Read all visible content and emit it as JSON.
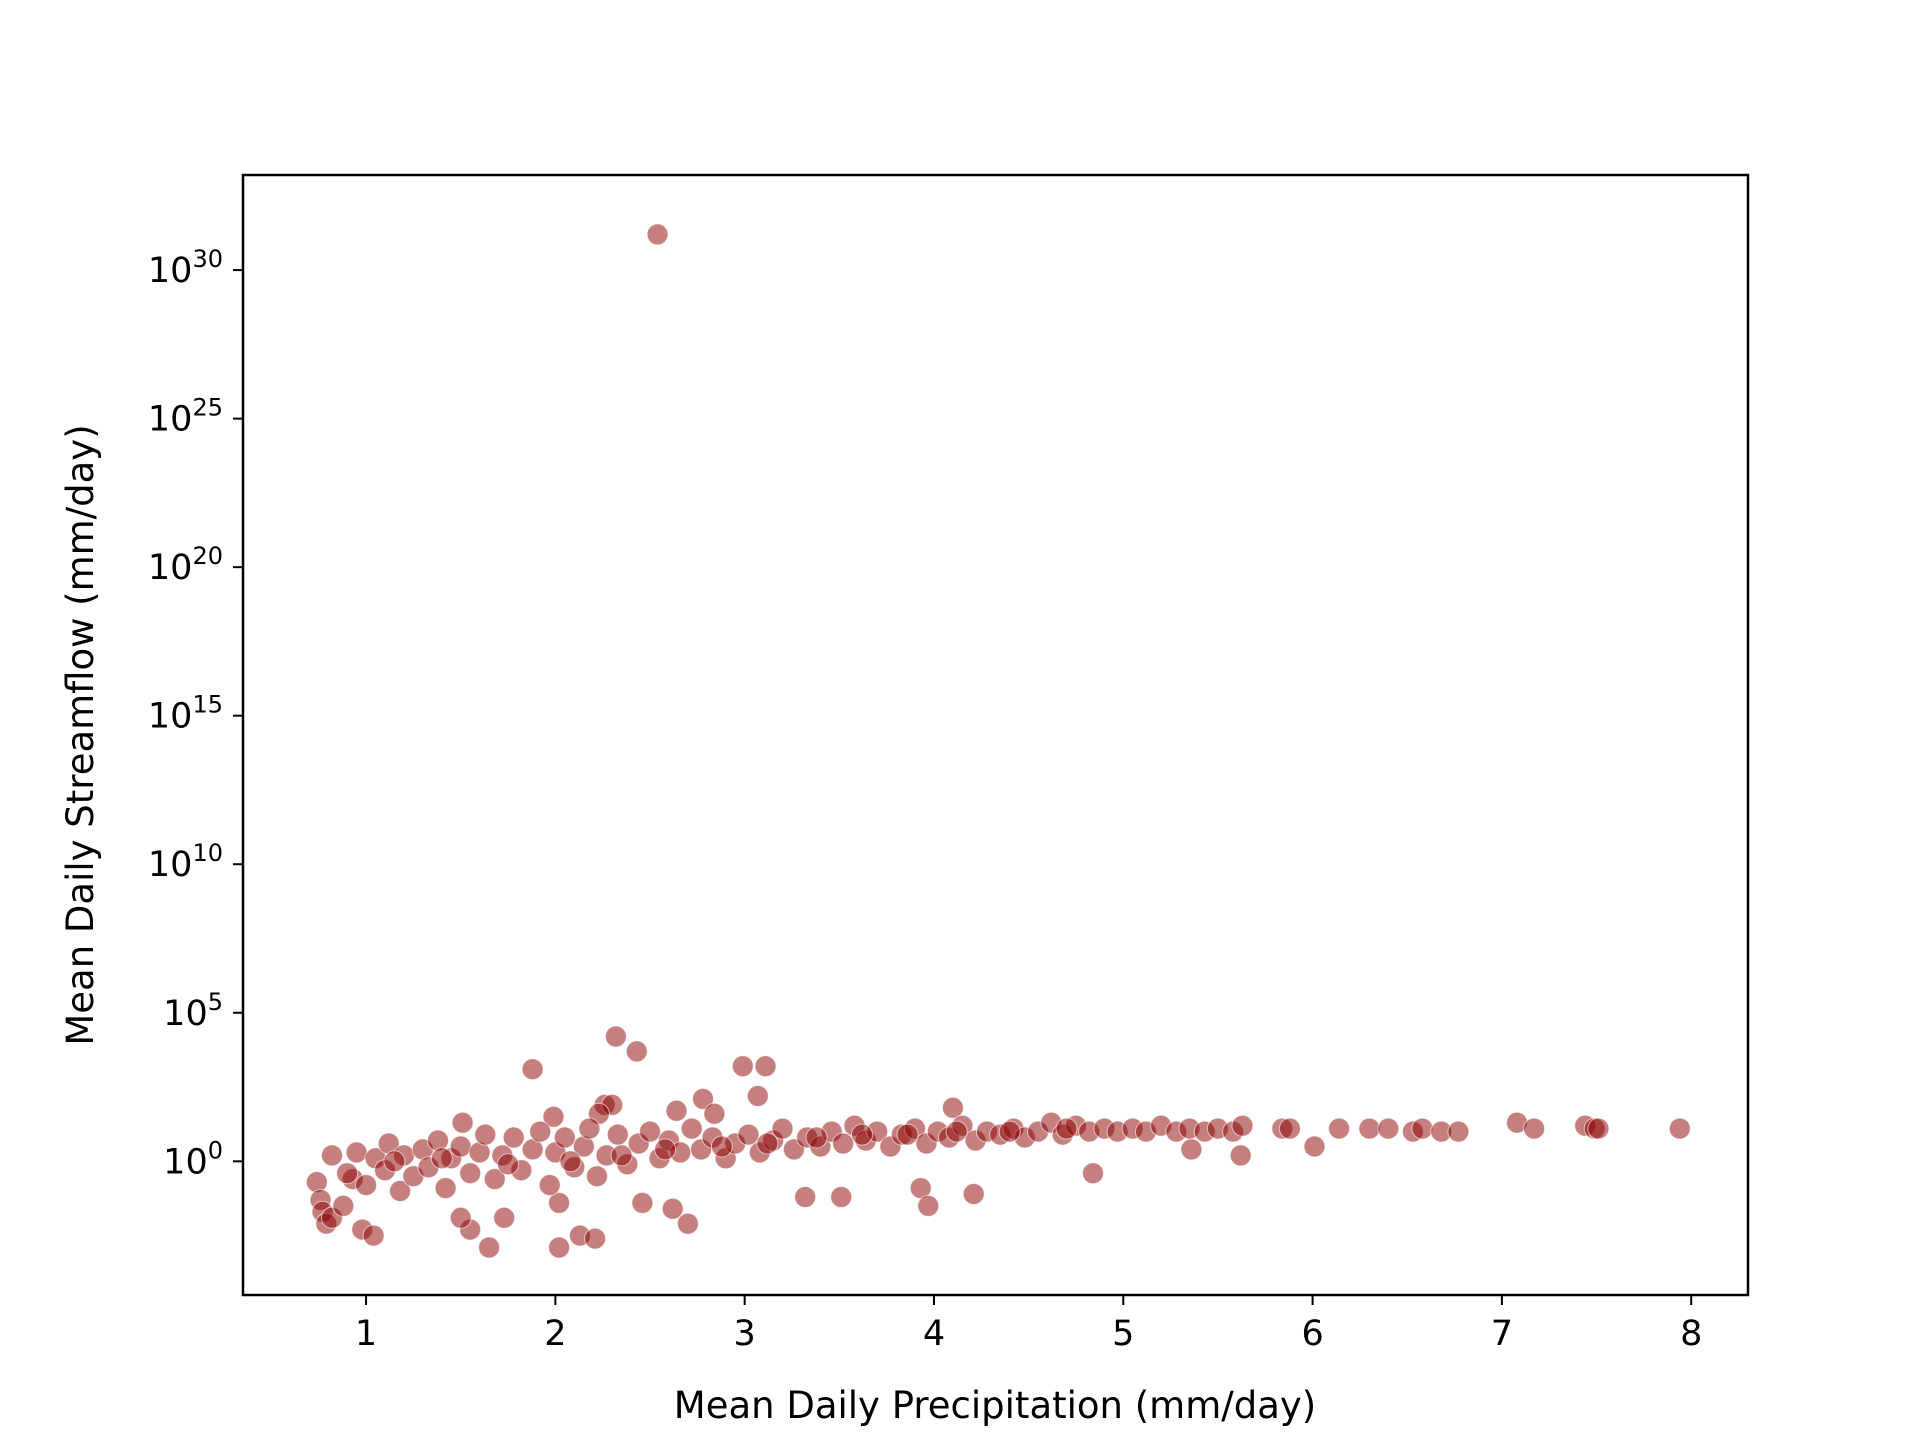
{
  "chart_data": {
    "type": "scatter",
    "title": "",
    "xlabel": "Mean Daily Precipitation (mm/day)",
    "ylabel": "Mean Daily Streamflow (mm/day)",
    "xscale": "linear",
    "yscale": "log",
    "xlim": [
      0.35,
      8.3
    ],
    "ylim_log10": [
      -4.5,
      33.2
    ],
    "xticks": [
      {
        "value": 1,
        "label": "1"
      },
      {
        "value": 2,
        "label": "2"
      },
      {
        "value": 3,
        "label": "3"
      },
      {
        "value": 4,
        "label": "4"
      },
      {
        "value": 5,
        "label": "5"
      },
      {
        "value": 6,
        "label": "6"
      },
      {
        "value": 7,
        "label": "7"
      },
      {
        "value": 8,
        "label": "8"
      }
    ],
    "yticks": [
      {
        "exp": 0,
        "base": "10",
        "power": "0"
      },
      {
        "exp": 5,
        "base": "10",
        "power": "5"
      },
      {
        "exp": 10,
        "base": "10",
        "power": "10"
      },
      {
        "exp": 15,
        "base": "10",
        "power": "15"
      },
      {
        "exp": 20,
        "base": "10",
        "power": "20"
      },
      {
        "exp": 25,
        "base": "10",
        "power": "25"
      },
      {
        "exp": 30,
        "base": "10",
        "power": "30"
      }
    ],
    "grid": false,
    "legend": "none",
    "marker_color": "#8b0000",
    "marker_alpha": 0.5,
    "series": [
      {
        "points_log10": [
          [
            2.54,
            31.2
          ],
          [
            2.32,
            4.2
          ],
          [
            2.43,
            3.7
          ],
          [
            1.88,
            3.1
          ],
          [
            2.99,
            3.2
          ],
          [
            3.11,
            3.2
          ],
          [
            3.07,
            2.2
          ],
          [
            2.26,
            1.9
          ],
          [
            2.3,
            1.9
          ],
          [
            2.64,
            1.7
          ],
          [
            2.78,
            2.1
          ],
          [
            1.99,
            1.5
          ],
          [
            4.1,
            1.8
          ],
          [
            1.51,
            1.3
          ],
          [
            2.23,
            1.6
          ],
          [
            2.84,
            1.6
          ],
          [
            0.74,
            -0.7
          ],
          [
            0.76,
            -1.3
          ],
          [
            0.77,
            -1.7
          ],
          [
            0.79,
            -2.1
          ],
          [
            0.82,
            -1.9
          ],
          [
            0.82,
            0.2
          ],
          [
            0.88,
            -1.5
          ],
          [
            0.93,
            -0.6
          ],
          [
            0.98,
            -2.3
          ],
          [
            1.04,
            -2.5
          ],
          [
            1.55,
            -2.3
          ],
          [
            1.65,
            -2.9
          ],
          [
            2.02,
            -2.9
          ],
          [
            2.13,
            -2.5
          ],
          [
            2.21,
            -2.6
          ],
          [
            1.5,
            -1.9
          ],
          [
            1.73,
            -1.9
          ],
          [
            2.02,
            -1.4
          ],
          [
            2.46,
            -1.4
          ],
          [
            2.62,
            -1.6
          ],
          [
            2.7,
            -2.1
          ],
          [
            3.32,
            -1.2
          ],
          [
            3.51,
            -1.2
          ],
          [
            3.93,
            -0.9
          ],
          [
            3.97,
            -1.5
          ],
          [
            4.21,
            -1.1
          ],
          [
            4.84,
            -0.4
          ],
          [
            5.36,
            0.4
          ],
          [
            5.62,
            0.2
          ],
          [
            6.01,
            0.5
          ],
          [
            0.9,
            -0.4
          ],
          [
            0.95,
            0.3
          ],
          [
            1.0,
            -0.8
          ],
          [
            1.05,
            0.1
          ],
          [
            1.1,
            -0.3
          ],
          [
            1.12,
            0.6
          ],
          [
            1.18,
            -1.0
          ],
          [
            1.2,
            0.2
          ],
          [
            1.25,
            -0.5
          ],
          [
            1.3,
            0.4
          ],
          [
            1.33,
            -0.2
          ],
          [
            1.38,
            0.7
          ],
          [
            1.42,
            -0.9
          ],
          [
            1.45,
            0.1
          ],
          [
            1.5,
            0.5
          ],
          [
            1.55,
            -0.4
          ],
          [
            1.6,
            0.3
          ],
          [
            1.63,
            0.9
          ],
          [
            1.68,
            -0.6
          ],
          [
            1.72,
            0.2
          ],
          [
            1.78,
            0.8
          ],
          [
            1.82,
            -0.3
          ],
          [
            1.88,
            0.4
          ],
          [
            1.92,
            1.0
          ],
          [
            1.97,
            -0.8
          ],
          [
            2.0,
            0.3
          ],
          [
            2.05,
            0.8
          ],
          [
            2.1,
            -0.2
          ],
          [
            2.15,
            0.5
          ],
          [
            2.18,
            1.1
          ],
          [
            2.22,
            -0.5
          ],
          [
            2.27,
            0.2
          ],
          [
            2.33,
            0.9
          ],
          [
            2.38,
            -0.1
          ],
          [
            2.44,
            0.6
          ],
          [
            2.5,
            1.0
          ],
          [
            2.55,
            0.1
          ],
          [
            2.6,
            0.7
          ],
          [
            2.66,
            0.3
          ],
          [
            2.72,
            1.1
          ],
          [
            2.77,
            0.4
          ],
          [
            2.83,
            0.8
          ],
          [
            2.9,
            0.1
          ],
          [
            2.95,
            0.6
          ],
          [
            3.02,
            0.9
          ],
          [
            3.08,
            0.3
          ],
          [
            3.15,
            0.7
          ],
          [
            3.2,
            1.1
          ],
          [
            3.26,
            0.4
          ],
          [
            3.33,
            0.8
          ],
          [
            3.4,
            0.5
          ],
          [
            3.46,
            1.0
          ],
          [
            3.52,
            0.6
          ],
          [
            3.58,
            1.2
          ],
          [
            3.64,
            0.7
          ],
          [
            3.7,
            1.0
          ],
          [
            3.77,
            0.5
          ],
          [
            3.83,
            0.9
          ],
          [
            3.9,
            1.1
          ],
          [
            3.96,
            0.6
          ],
          [
            4.02,
            1.0
          ],
          [
            4.08,
            0.8
          ],
          [
            4.15,
            1.2
          ],
          [
            4.22,
            0.7
          ],
          [
            4.28,
            1.0
          ],
          [
            4.35,
            0.9
          ],
          [
            4.42,
            1.1
          ],
          [
            4.48,
            0.8
          ],
          [
            4.55,
            1.0
          ],
          [
            4.62,
            1.3
          ],
          [
            4.68,
            0.9
          ],
          [
            4.75,
            1.2
          ],
          [
            4.82,
            1.0
          ],
          [
            4.9,
            1.1
          ],
          [
            4.97,
            1.0
          ],
          [
            5.05,
            1.1
          ],
          [
            5.12,
            1.0
          ],
          [
            5.2,
            1.2
          ],
          [
            5.28,
            1.0
          ],
          [
            5.35,
            1.1
          ],
          [
            5.43,
            1.0
          ],
          [
            5.5,
            1.1
          ],
          [
            5.58,
            1.0
          ],
          [
            5.63,
            1.2
          ],
          [
            5.84,
            1.1
          ],
          [
            5.88,
            1.1
          ],
          [
            6.14,
            1.1
          ],
          [
            6.3,
            1.1
          ],
          [
            6.4,
            1.1
          ],
          [
            6.53,
            1.0
          ],
          [
            6.58,
            1.1
          ],
          [
            6.68,
            1.0
          ],
          [
            6.77,
            1.0
          ],
          [
            7.08,
            1.3
          ],
          [
            7.17,
            1.1
          ],
          [
            7.44,
            1.2
          ],
          [
            7.49,
            1.1
          ],
          [
            7.51,
            1.1
          ],
          [
            7.94,
            1.1
          ],
          [
            1.15,
            0.0
          ],
          [
            1.4,
            0.1
          ],
          [
            1.75,
            -0.1
          ],
          [
            2.08,
            0.0
          ],
          [
            2.35,
            0.2
          ],
          [
            2.58,
            0.4
          ],
          [
            2.88,
            0.5
          ],
          [
            3.12,
            0.6
          ],
          [
            3.38,
            0.8
          ],
          [
            3.62,
            0.9
          ],
          [
            3.86,
            0.9
          ],
          [
            4.12,
            1.0
          ],
          [
            4.4,
            1.0
          ],
          [
            4.7,
            1.1
          ]
        ]
      }
    ]
  }
}
